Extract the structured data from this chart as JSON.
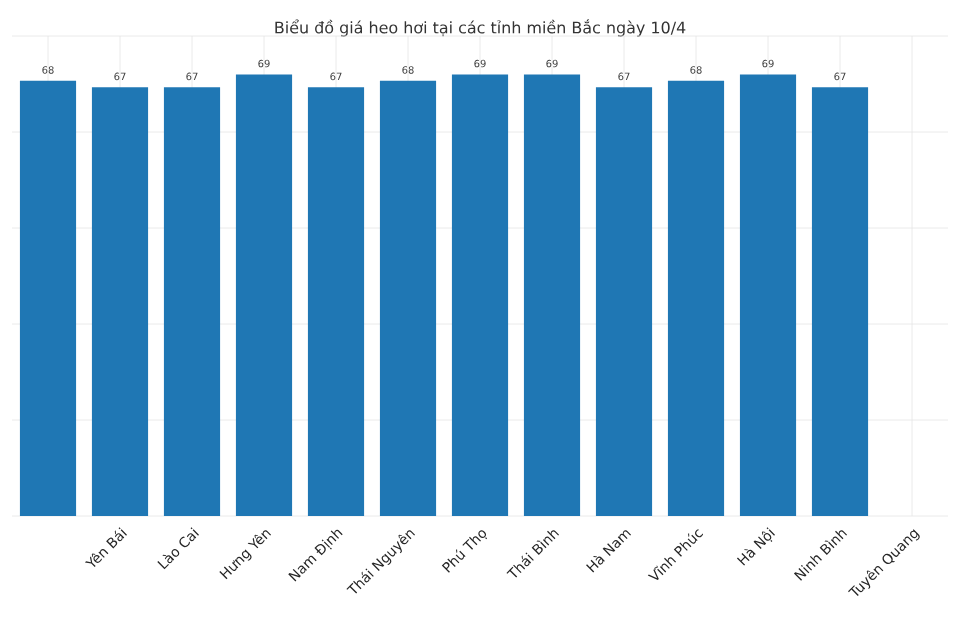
{
  "chart_data": {
    "type": "bar",
    "title": "Biểu đồ giá heo hơi tại các tỉnh miền Bắc ngày 10/4",
    "categories": [
      null,
      "Yên Bái",
      "Lào Cai",
      "Hưng Yên",
      "Nam Định",
      "Thái Nguyên",
      "Phú Thọ",
      "Thái Bình",
      "Hà Nam",
      "Vĩnh Phúc",
      "Hà Nội",
      "Ninh Bình",
      "Tuyên Quang"
    ],
    "values": [
      68,
      67,
      67,
      69,
      67,
      68,
      69,
      69,
      67,
      68,
      69,
      67,
      null
    ],
    "color": "#1f77b4",
    "data_labels": true,
    "grid": true,
    "tick_labels": "x",
    "ylim": [
      0,
      75
    ],
    "yticks": [
      {
        "value": 0,
        "label": null
      },
      {
        "value": 15,
        "label": null
      },
      {
        "value": 30,
        "label": null
      },
      {
        "value": 45,
        "label": null
      },
      {
        "value": 60,
        "label": null
      },
      {
        "value": 75,
        "label": null
      }
    ]
  }
}
